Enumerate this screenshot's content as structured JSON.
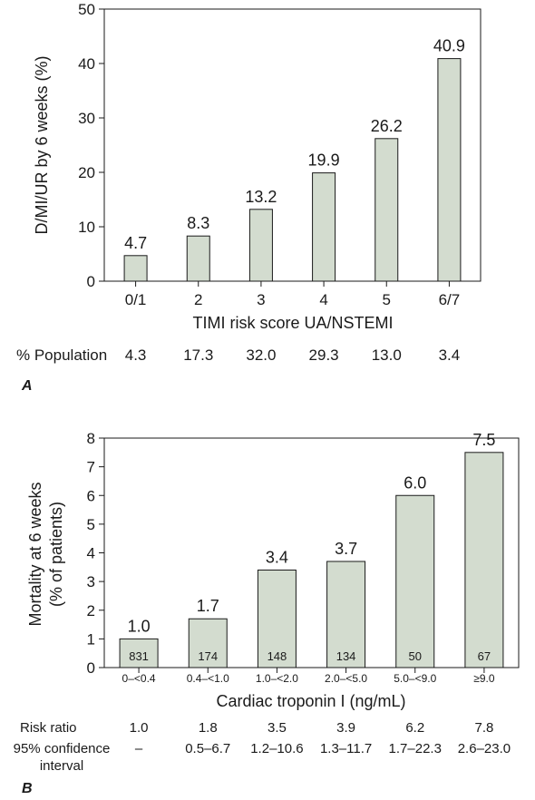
{
  "chart_data": [
    {
      "type": "bar",
      "panel": "A",
      "ylabel": "D/MI/UR by 6 weeks (%)",
      "xlabel": "TIMI risk score UA/NSTEMI",
      "ylim": [
        0,
        50
      ],
      "yticks": [
        "0",
        "10",
        "20",
        "30",
        "40",
        "50"
      ],
      "categories": [
        "0/1",
        "2",
        "3",
        "4",
        "5",
        "6/7"
      ],
      "values": [
        4.7,
        8.3,
        13.2,
        19.9,
        26.2,
        40.9
      ],
      "value_labels": [
        "4.7",
        "8.3",
        "13.2",
        "19.9",
        "26.2",
        "40.9"
      ],
      "bar_color": "#d3dccf",
      "grid": false,
      "rows": [
        {
          "label": "% Population",
          "values": [
            "4.3",
            "17.3",
            "32.0",
            "29.3",
            "13.0",
            "3.4"
          ]
        }
      ]
    },
    {
      "type": "bar",
      "panel": "B",
      "ylabel_lines": [
        "Mortality at 6 weeks",
        "(% of patients)"
      ],
      "xlabel": "Cardiac troponin I (ng/mL)",
      "ylim": [
        0,
        8
      ],
      "yticks": [
        "0",
        "1",
        "2",
        "3",
        "4",
        "5",
        "6",
        "7",
        "8"
      ],
      "categories": [
        "0–<0.4",
        "0.4–<1.0",
        "1.0–<2.0",
        "2.0–<5.0",
        "5.0–<9.0",
        "≥9.0"
      ],
      "values": [
        1.0,
        1.7,
        3.4,
        3.7,
        6.0,
        7.5
      ],
      "value_labels": [
        "1.0",
        "1.7",
        "3.4",
        "3.7",
        "6.0",
        "7.5"
      ],
      "inner_labels": [
        "831",
        "174",
        "148",
        "134",
        "50",
        "67"
      ],
      "bar_color": "#d3dccf",
      "grid": false,
      "rows": [
        {
          "label_lines": [
            "Risk ratio"
          ],
          "values": [
            "1.0",
            "1.8",
            "3.5",
            "3.9",
            "6.2",
            "7.8"
          ]
        },
        {
          "label_lines": [
            "95% confidence",
            "interval"
          ],
          "values": [
            "–",
            "0.5–6.7",
            "1.2–10.6",
            "1.3–11.7",
            "1.7–22.3",
            "2.6–23.0"
          ]
        }
      ]
    }
  ]
}
